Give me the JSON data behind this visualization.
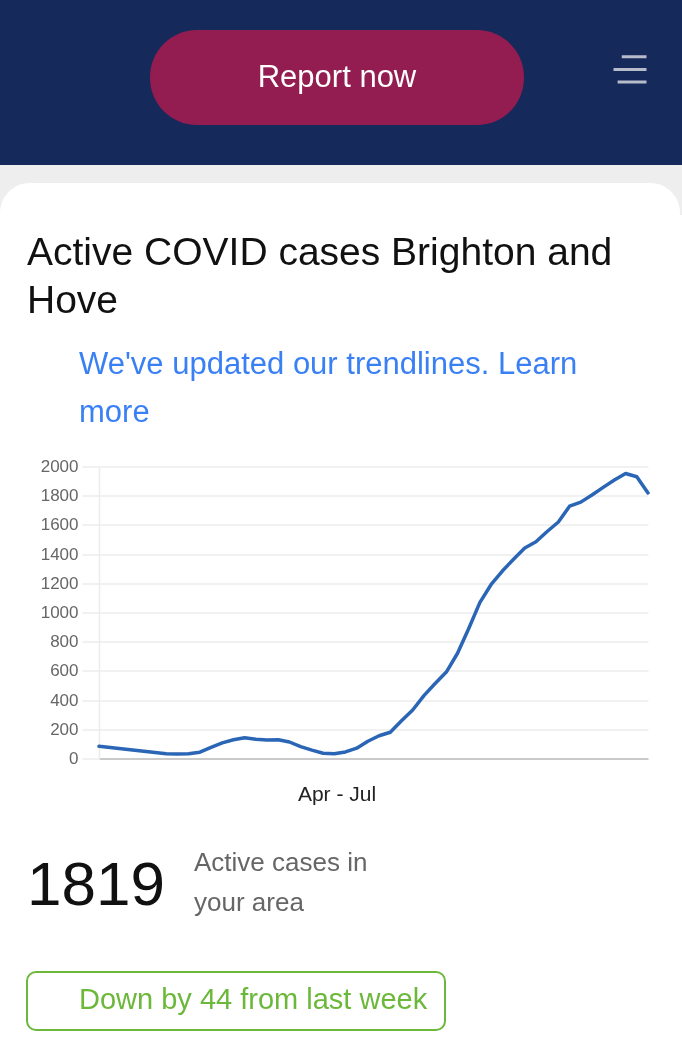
{
  "chart_data": {
    "type": "line",
    "title": "Active COVID cases Brighton and Hove",
    "xlabel": "Apr - Jul",
    "categories": [
      null,
      null,
      null,
      null,
      null,
      null,
      null,
      null,
      null,
      null,
      null,
      null,
      null,
      null,
      null,
      null,
      null,
      null,
      null,
      null,
      null,
      null,
      null,
      null,
      null,
      null,
      null,
      null,
      null,
      null,
      null,
      null,
      null,
      null,
      null,
      null,
      null,
      null,
      null,
      null,
      null,
      null,
      null,
      null,
      null,
      null,
      null,
      null,
      null,
      null
    ],
    "series": [
      {
        "color": "#2a66b5",
        "values": [
          84,
          75,
          67,
          58,
          49,
          41,
          32,
          30,
          32,
          43,
          76,
          107,
          128,
          142,
          132,
          127,
          129,
          113,
          81,
          57,
          36,
          33,
          45,
          71,
          118,
          156,
          180,
          258,
          332,
          431,
          514,
          592,
          721,
          891,
          1069,
          1192,
          1284,
          1365,
          1442,
          1484,
          1555,
          1620,
          1728,
          1756,
          1805,
          1857,
          1907,
          1952,
          1930,
          1819
        ]
      }
    ],
    "ylim": [
      0,
      2000
    ],
    "yticks": [
      0,
      200,
      400,
      600,
      800,
      1000,
      1200,
      1400,
      1600,
      1800,
      2000
    ],
    "grid": "y",
    "marker": "none",
    "line_style": "solid",
    "annotations": [
      "Report now",
      "We've updated our trendlines. Learn more",
      "1819",
      "Active cases in your area",
      "Down by 44 from last week"
    ]
  }
}
